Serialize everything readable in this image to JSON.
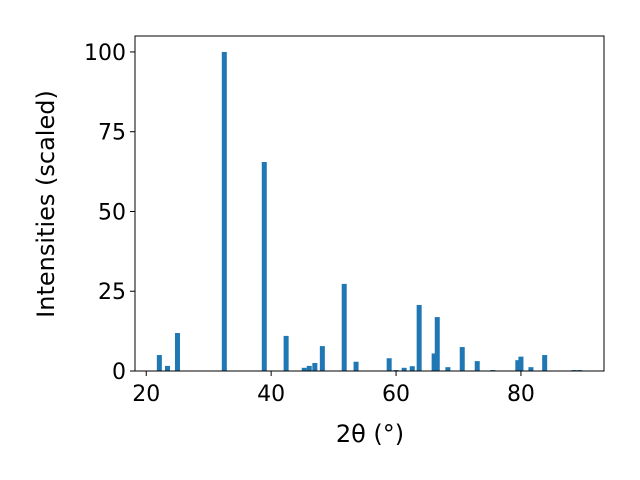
{
  "chart_data": {
    "type": "bar",
    "xlabel": "2θ (°)",
    "ylabel": "Intensities (scaled)",
    "x": [
      22.1,
      23.4,
      25.0,
      32.5,
      38.9,
      42.4,
      45.3,
      46.1,
      47.0,
      48.2,
      51.7,
      53.6,
      58.9,
      60.0,
      61.3,
      62.6,
      63.7,
      66.1,
      66.6,
      68.3,
      70.6,
      73.0,
      75.5,
      79.5,
      80.0,
      81.6,
      83.8,
      88.5,
      89.4
    ],
    "values": [
      5.0,
      1.6,
      11.9,
      100,
      65.5,
      11.0,
      1.0,
      1.6,
      2.5,
      7.8,
      27.3,
      2.9,
      4.0,
      0.3,
      1.0,
      1.5,
      20.7,
      5.5,
      16.9,
      1.2,
      7.5,
      3.1,
      0.3,
      3.4,
      4.5,
      1.2,
      5.0,
      0.3,
      0.3
    ],
    "color": "#1f77b4",
    "xlim": [
      18.2,
      93.3
    ],
    "xticks": [
      20,
      40,
      60,
      80
    ],
    "ylim": [
      0,
      105
    ],
    "yticks": [
      0,
      25,
      50,
      75,
      100
    ],
    "grid": false
  }
}
